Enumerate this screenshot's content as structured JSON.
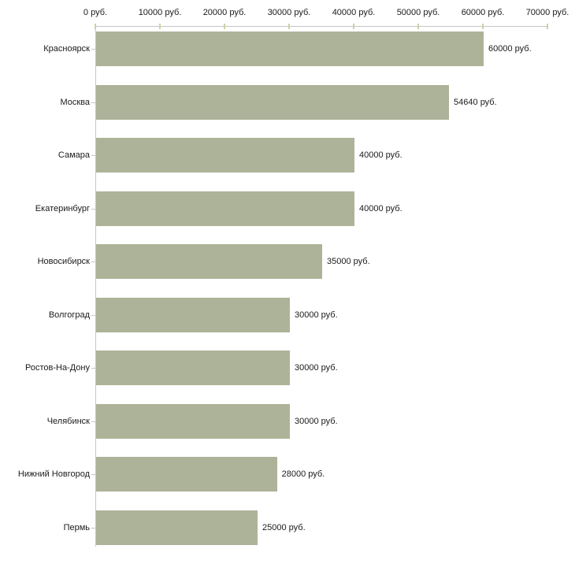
{
  "chart_data": {
    "type": "bar",
    "orientation": "horizontal",
    "title": "",
    "xlabel": "",
    "ylabel": "",
    "categories": [
      "Красноярск",
      "Москва",
      "Самара",
      "Екатеринбург",
      "Новосибирск",
      "Волгоград",
      "Ростов-На-Дону",
      "Челябинск",
      "Нижний Новгород",
      "Пермь"
    ],
    "values": [
      60000,
      54640,
      40000,
      40000,
      35000,
      30000,
      30000,
      30000,
      28000,
      25000
    ],
    "value_labels": [
      "60000 руб.",
      "54640 руб.",
      "40000 руб.",
      "40000 руб.",
      "35000 руб.",
      "30000 руб.",
      "30000 руб.",
      "30000 руб.",
      "28000 руб.",
      "25000 руб."
    ],
    "x_ticks": [
      0,
      10000,
      20000,
      30000,
      40000,
      50000,
      60000,
      70000
    ],
    "x_tick_labels": [
      "0 руб.",
      "10000 руб.",
      "20000 руб.",
      "30000 руб.",
      "40000 руб.",
      "50000 руб.",
      "60000 руб.",
      "70000 руб."
    ],
    "xlim": [
      0,
      70000
    ],
    "grid": false,
    "legend": false,
    "colors": {
      "bar": "#adb398",
      "axis": "#c6c6c6",
      "x_tick": "#ced1a6",
      "category_tick": "#c6c6c6",
      "text": "#1a1a1a",
      "background": "#ffffff"
    }
  }
}
